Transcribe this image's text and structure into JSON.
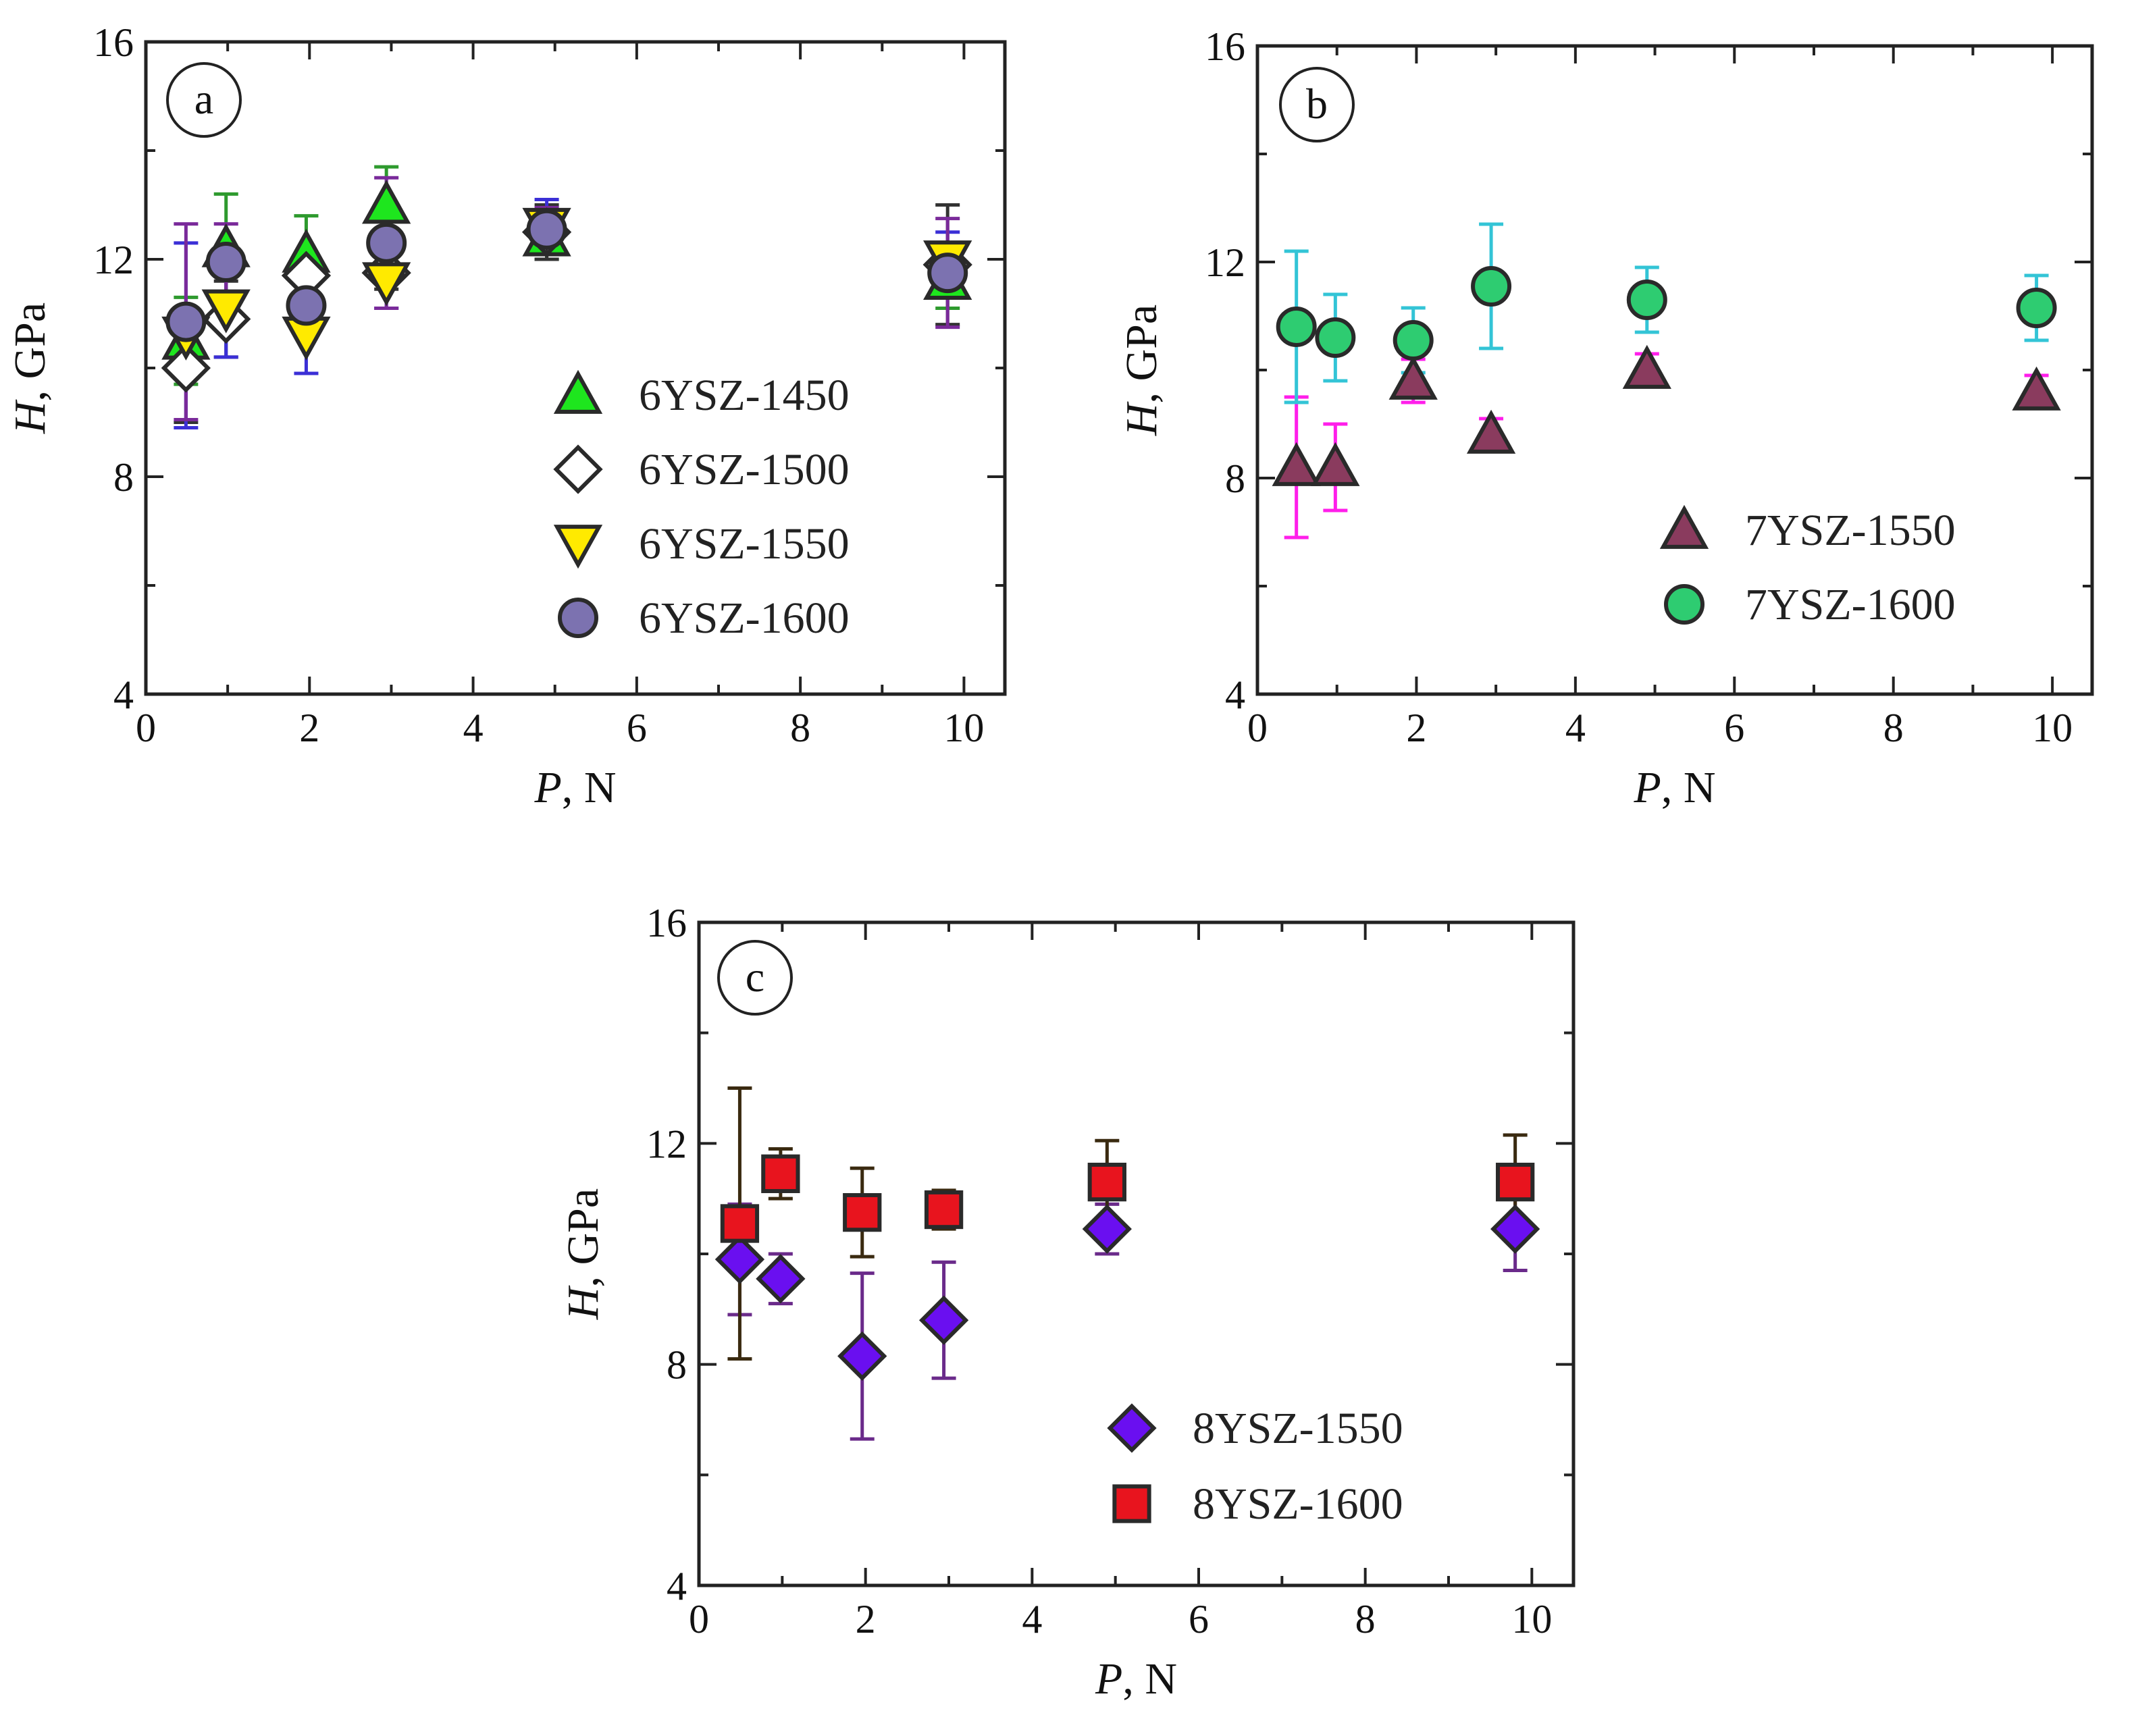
{
  "chart_data": [
    {
      "type": "scatter",
      "panel_label": "a",
      "xlabel_var": "P",
      "xlabel_unit": ", N",
      "ylabel_var": "H",
      "ylabel_unit": ", GPa",
      "xlim": [
        0,
        10.5
      ],
      "ylim": [
        4,
        16
      ],
      "xticks": [
        0,
        2,
        4,
        6,
        8,
        10
      ],
      "yticks": [
        4,
        8,
        12,
        16
      ],
      "grid": false,
      "legend_position": "bottom-right",
      "series": [
        {
          "name": "6YSZ-1450",
          "marker": "triangle-up",
          "fill": "#1ee61e",
          "err_color": "#2e9a2e",
          "x": [
            0.49,
            0.98,
            1.96,
            2.94,
            4.9,
            9.8
          ],
          "y": [
            10.5,
            12.2,
            12.1,
            13.0,
            12.4,
            11.6
          ],
          "err": [
            0.8,
            1.0,
            0.7,
            0.7,
            0.4,
            0.5
          ]
        },
        {
          "name": "6YSZ-1500",
          "marker": "diamond",
          "fill": "#ffffff",
          "err_color": "#333333",
          "x": [
            0.49,
            0.98,
            1.96,
            2.94,
            4.9,
            9.8
          ],
          "y": [
            10.0,
            10.9,
            11.7,
            11.75,
            12.5,
            11.9
          ],
          "err": [
            1.0,
            0.7,
            0.4,
            0.3,
            0.5,
            1.1
          ]
        },
        {
          "name": "6YSZ-1550",
          "marker": "triangle-down",
          "fill": "#ffea00",
          "err_color": "#3b2fd6",
          "x": [
            0.49,
            0.98,
            1.96,
            2.94,
            4.9,
            9.8
          ],
          "y": [
            10.6,
            11.1,
            10.6,
            11.6,
            12.6,
            12.0
          ],
          "err": [
            1.7,
            0.9,
            0.7,
            0.5,
            0.5,
            0.5
          ]
        },
        {
          "name": "6YSZ-1600",
          "marker": "circle",
          "fill": "#7c72b0",
          "err_color": "#7a2a9a",
          "x": [
            0.49,
            0.98,
            1.96,
            2.94,
            4.9,
            9.8
          ],
          "y": [
            10.85,
            11.95,
            11.15,
            12.3,
            12.55,
            11.75
          ],
          "err": [
            1.8,
            0.7,
            0.5,
            1.2,
            0.4,
            1.0
          ]
        }
      ]
    },
    {
      "type": "scatter",
      "panel_label": "b",
      "xlabel_var": "P",
      "xlabel_unit": ", N",
      "ylabel_var": "H",
      "ylabel_unit": ", GPa",
      "xlim": [
        0,
        10.5
      ],
      "ylim": [
        4,
        16
      ],
      "xticks": [
        0,
        2,
        4,
        6,
        8,
        10
      ],
      "yticks": [
        4,
        8,
        12,
        16
      ],
      "grid": false,
      "legend_position": "bottom-right",
      "series": [
        {
          "name": "7YSZ-1550",
          "marker": "triangle-up",
          "fill": "#8a3b5e",
          "err_color": "#ff1eea",
          "x": [
            0.49,
            0.98,
            1.96,
            2.94,
            4.9,
            9.8
          ],
          "y": [
            8.2,
            8.2,
            9.8,
            8.8,
            10.0,
            9.6
          ],
          "err": [
            1.3,
            0.8,
            0.4,
            0.3,
            0.3,
            0.3
          ]
        },
        {
          "name": "7YSZ-1600",
          "marker": "circle",
          "fill": "#2ecc71",
          "err_color": "#33c4d6",
          "x": [
            0.49,
            0.98,
            1.96,
            2.94,
            4.9,
            9.8
          ],
          "y": [
            10.8,
            10.6,
            10.55,
            11.55,
            11.3,
            11.15
          ],
          "err": [
            1.4,
            0.8,
            0.6,
            1.15,
            0.6,
            0.6
          ]
        }
      ]
    },
    {
      "type": "scatter",
      "panel_label": "c",
      "xlabel_var": "P",
      "xlabel_unit": ", N",
      "ylabel_var": "H",
      "ylabel_unit": ", GPa",
      "xlim": [
        0,
        10.5
      ],
      "ylim": [
        4,
        16
      ],
      "xticks": [
        0,
        2,
        4,
        6,
        8,
        10
      ],
      "yticks": [
        4,
        8,
        12,
        16
      ],
      "grid": false,
      "legend_position": "bottom-right",
      "series": [
        {
          "name": "8YSZ-1550",
          "marker": "diamond",
          "fill": "#6a0ff0",
          "err_color": "#6a2a8a",
          "x": [
            0.49,
            0.98,
            1.96,
            2.94,
            4.9,
            9.8
          ],
          "y": [
            9.9,
            9.55,
            8.15,
            8.8,
            10.45,
            10.45
          ],
          "err": [
            1.0,
            0.45,
            1.5,
            1.05,
            0.45,
            0.75
          ]
        },
        {
          "name": "8YSZ-1600",
          "marker": "square",
          "fill": "#e8141e",
          "err_color": "#3a2a10",
          "x": [
            0.49,
            0.98,
            1.96,
            2.94,
            4.9,
            9.8
          ],
          "y": [
            10.55,
            11.45,
            10.75,
            10.8,
            11.3,
            11.3
          ],
          "err": [
            2.45,
            0.45,
            0.8,
            0.35,
            0.75,
            0.85
          ]
        }
      ]
    }
  ]
}
